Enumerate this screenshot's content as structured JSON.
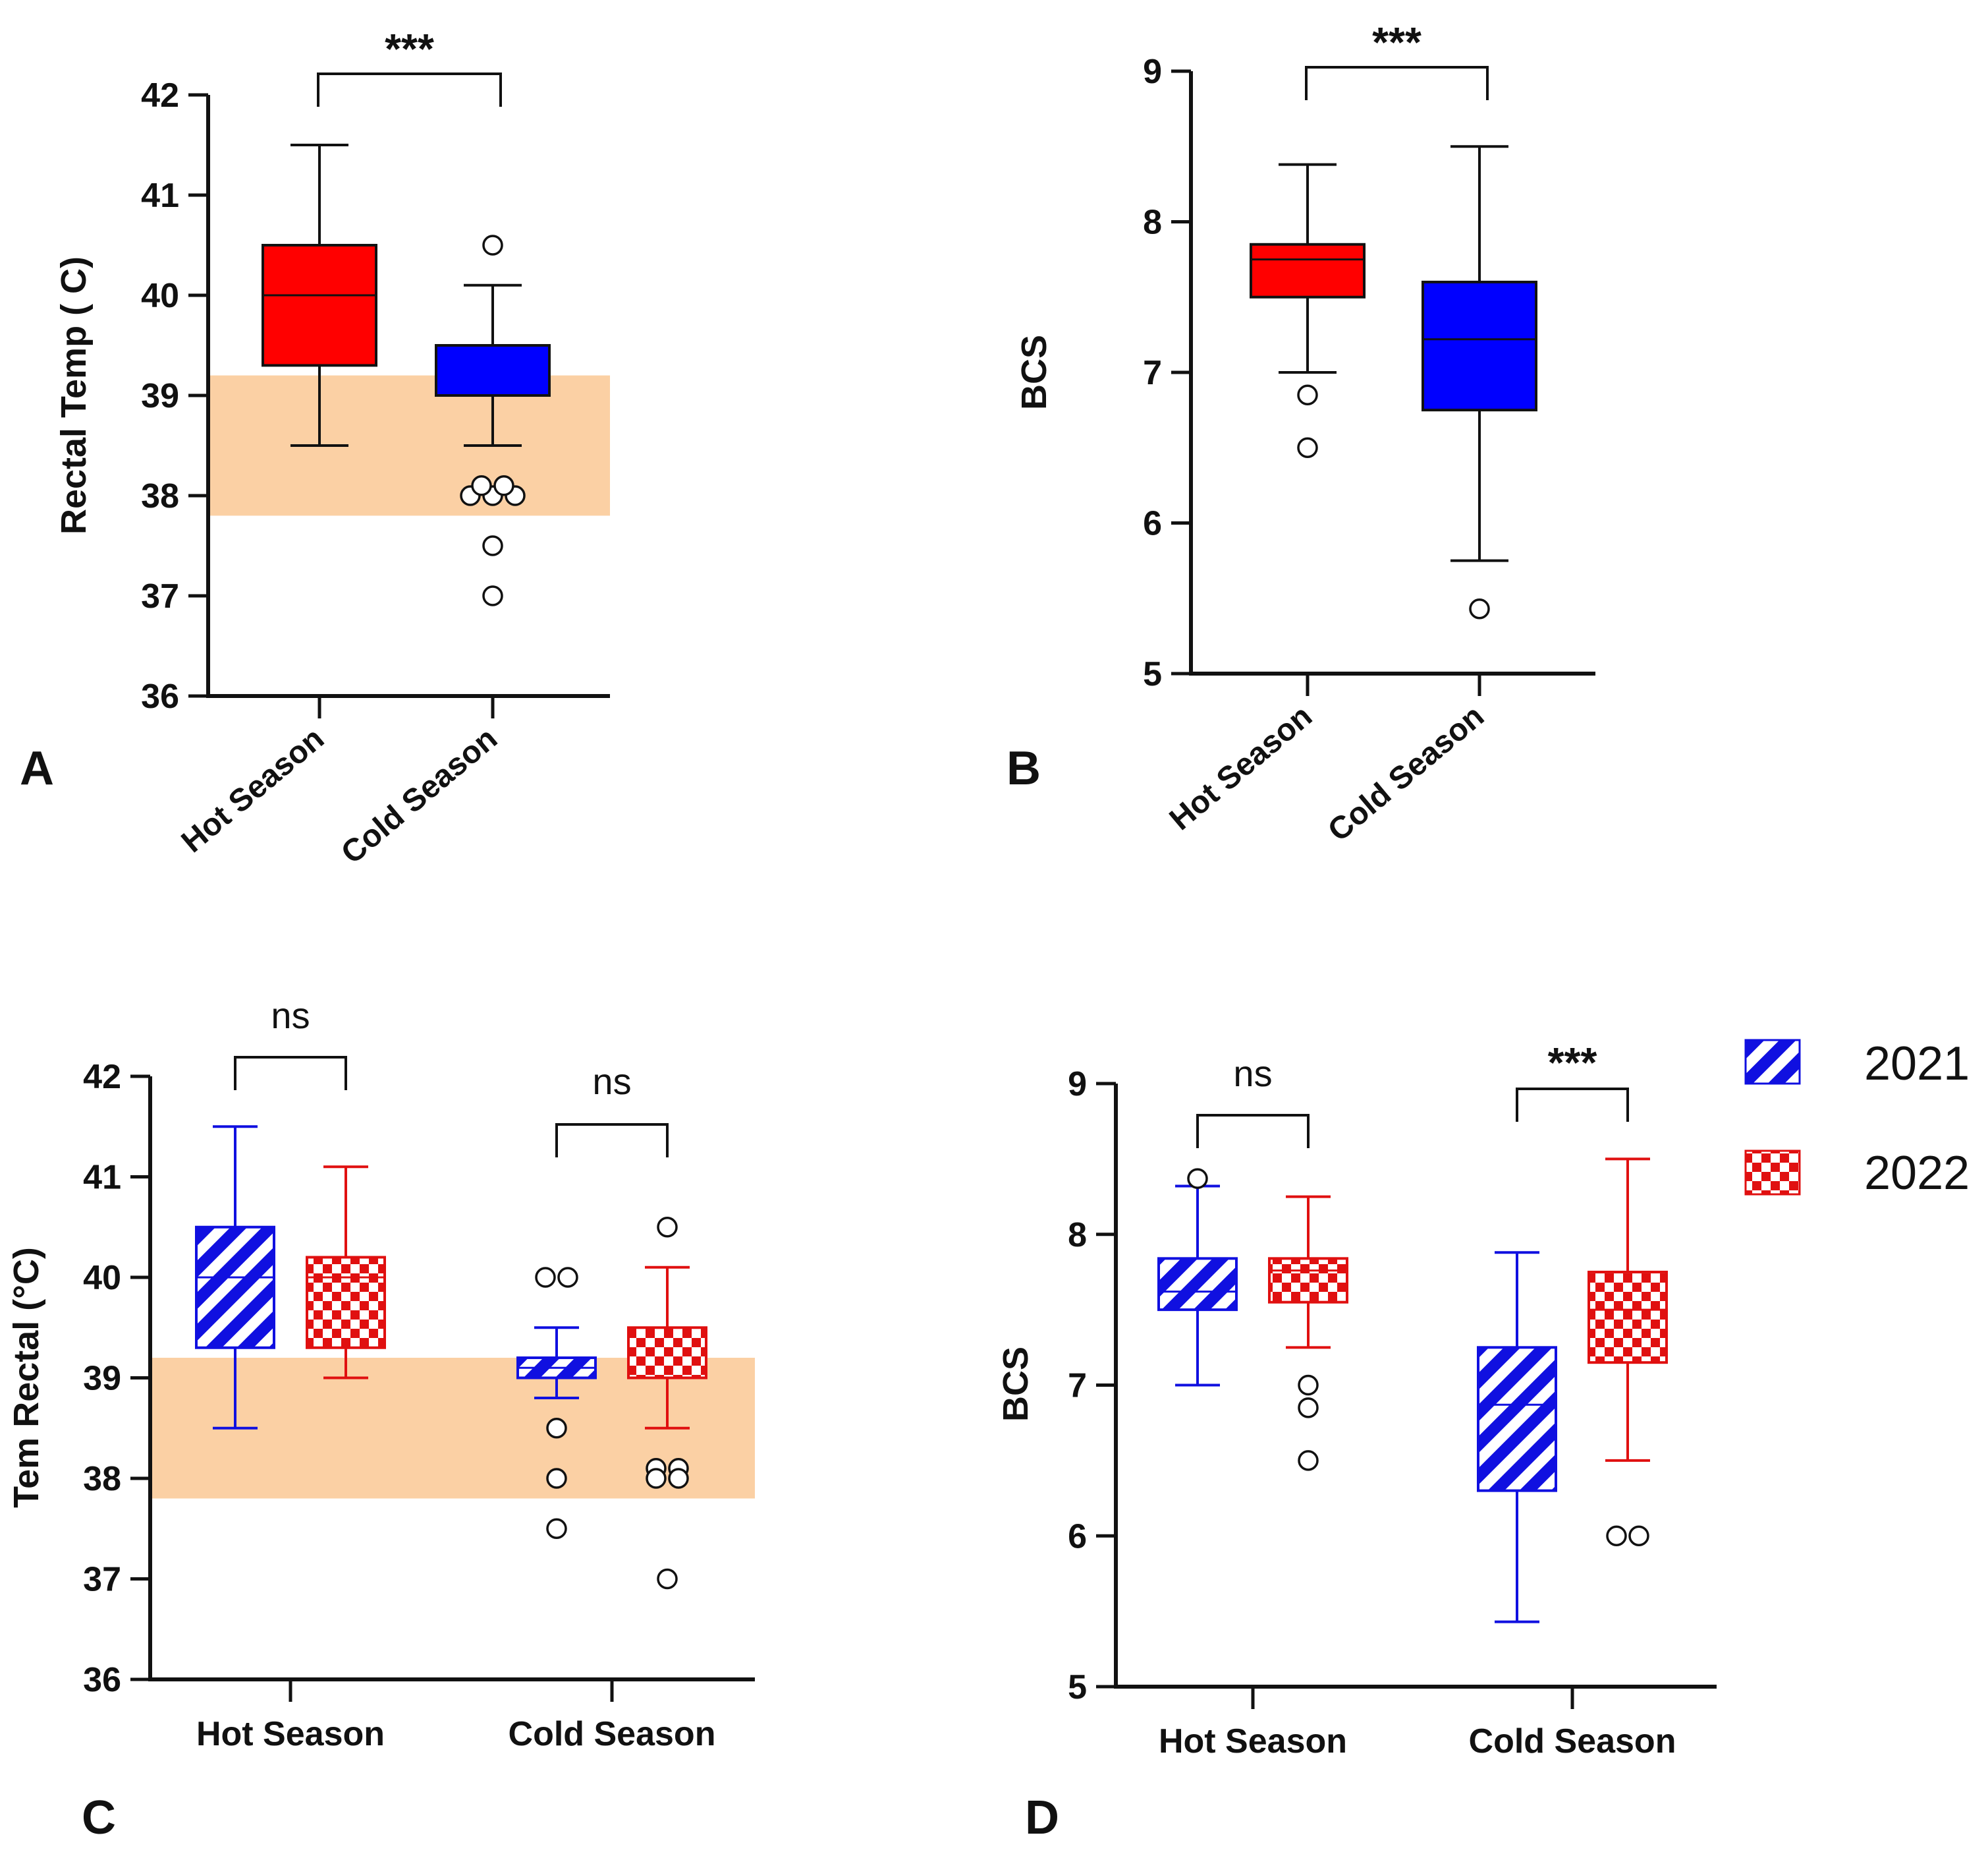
{
  "figure": {
    "panel_letters": [
      "A",
      "B",
      "C",
      "D"
    ],
    "legend": [
      {
        "label": "2021",
        "color": "#1010e0",
        "pattern": "stripes"
      },
      {
        "label": "2022",
        "color": "#e01010",
        "pattern": "checker"
      }
    ],
    "colors": {
      "hot": "#ff0000",
      "cold": "#0000ff",
      "y2021": "#1010e0",
      "y2022": "#e01010",
      "band": "#fbd0a4",
      "axis": "#111111"
    }
  },
  "chart_data": [
    {
      "panel": "A",
      "type": "box",
      "ylabel": "Rectal Temp (  C)",
      "ylim": [
        36,
        42
      ],
      "yticks": [
        36,
        37,
        38,
        39,
        40,
        41,
        42
      ],
      "categories": [
        "Hot Season",
        "Cold Season"
      ],
      "reference_band": [
        37.8,
        39.2
      ],
      "boxes": [
        {
          "category": "Hot Season",
          "min": 38.5,
          "q1": 39.3,
          "median": 40.0,
          "q3": 40.5,
          "max": 41.5,
          "outliers": [],
          "color_key": "hot"
        },
        {
          "category": "Cold Season",
          "min": 38.5,
          "q1": 39.0,
          "median": 39.0,
          "q3": 39.5,
          "max": 40.1,
          "outliers": [
            40.5,
            38.0,
            38.0,
            38.0,
            38.1,
            38.1,
            37.5,
            37.0
          ],
          "color_key": "cold"
        }
      ],
      "significance": [
        {
          "between": [
            "Hot Season",
            "Cold Season"
          ],
          "label": "***"
        }
      ]
    },
    {
      "panel": "B",
      "type": "box",
      "ylabel": "BCS",
      "ylim": [
        5,
        9
      ],
      "yticks": [
        5,
        6,
        7,
        8,
        9
      ],
      "categories": [
        "Hot Season",
        "Cold Season"
      ],
      "boxes": [
        {
          "category": "Hot Season",
          "min": 7.0,
          "q1": 7.5,
          "median": 7.75,
          "q3": 7.85,
          "max": 8.38,
          "outliers": [
            6.85,
            6.5
          ],
          "color_key": "hot"
        },
        {
          "category": "Cold Season",
          "min": 5.75,
          "q1": 6.75,
          "median": 7.22,
          "q3": 7.6,
          "max": 8.5,
          "outliers": [
            5.43
          ],
          "color_key": "cold"
        }
      ],
      "significance": [
        {
          "between": [
            "Hot Season",
            "Cold Season"
          ],
          "label": "***"
        }
      ]
    },
    {
      "panel": "C",
      "type": "box",
      "ylabel": "Tem  Rectal (°C)",
      "ylim": [
        36,
        42
      ],
      "yticks": [
        36,
        37,
        38,
        39,
        40,
        41,
        42
      ],
      "categories": [
        "Hot Season",
        "Cold Season"
      ],
      "series": [
        "2021",
        "2022"
      ],
      "reference_band": [
        37.8,
        39.2
      ],
      "boxes": [
        {
          "category": "Hot Season",
          "series": "2021",
          "min": 38.5,
          "q1": 39.3,
          "median": 40.0,
          "q3": 40.5,
          "max": 41.5,
          "outliers": []
        },
        {
          "category": "Hot Season",
          "series": "2022",
          "min": 39.0,
          "q1": 39.3,
          "median": 40.0,
          "q3": 40.2,
          "max": 41.1,
          "outliers": []
        },
        {
          "category": "Cold Season",
          "series": "2021",
          "min": 38.8,
          "q1": 39.0,
          "median": 39.1,
          "q3": 39.2,
          "max": 39.5,
          "outliers": [
            40.0,
            40.0,
            38.5,
            38.0,
            37.5
          ]
        },
        {
          "category": "Cold Season",
          "series": "2022",
          "min": 38.5,
          "q1": 39.0,
          "median": 39.0,
          "q3": 39.5,
          "max": 40.1,
          "outliers": [
            40.5,
            38.1,
            38.1,
            38.0,
            38.0,
            37.0
          ]
        }
      ],
      "significance": [
        {
          "category": "Hot Season",
          "label": "ns"
        },
        {
          "category": "Cold Season",
          "label": "ns"
        }
      ]
    },
    {
      "panel": "D",
      "type": "box",
      "ylabel": "BCS",
      "ylim": [
        5,
        9
      ],
      "yticks": [
        5,
        6,
        7,
        8,
        9
      ],
      "categories": [
        "Hot Season",
        "Cold Season"
      ],
      "series": [
        "2021",
        "2022"
      ],
      "boxes": [
        {
          "category": "Hot Season",
          "series": "2021",
          "min": 7.0,
          "q1": 7.5,
          "median": 7.62,
          "q3": 7.84,
          "max": 8.32,
          "outliers": [
            8.37
          ]
        },
        {
          "category": "Hot Season",
          "series": "2022",
          "min": 7.25,
          "q1": 7.55,
          "median": 7.76,
          "q3": 7.84,
          "max": 8.25,
          "outliers": [
            7.0,
            6.85,
            6.5
          ]
        },
        {
          "category": "Cold Season",
          "series": "2021",
          "min": 5.43,
          "q1": 6.3,
          "median": 6.87,
          "q3": 7.25,
          "max": 7.88,
          "outliers": []
        },
        {
          "category": "Cold Season",
          "series": "2022",
          "min": 6.5,
          "q1": 7.15,
          "median": 7.5,
          "q3": 7.75,
          "max": 8.5,
          "outliers": [
            6.0,
            6.0
          ]
        }
      ],
      "significance": [
        {
          "category": "Hot Season",
          "label": "ns"
        },
        {
          "category": "Cold Season",
          "label": "***"
        }
      ]
    }
  ]
}
